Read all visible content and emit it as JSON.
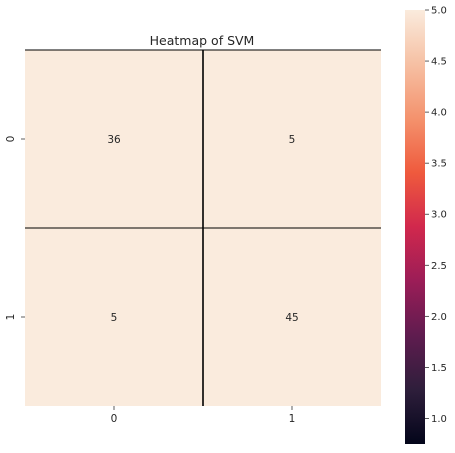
{
  "chart_data": {
    "type": "heatmap",
    "title": "Heatmap of SVM",
    "xlabel": "",
    "ylabel": "",
    "x_categories": [
      "0",
      "1"
    ],
    "y_categories": [
      "0",
      "1"
    ],
    "values": [
      [
        36,
        5
      ],
      [
        5,
        45
      ]
    ],
    "annotations": [
      "36",
      "5",
      "5",
      "45"
    ],
    "colorbar": {
      "min": 0.75,
      "max": 5.0,
      "ticks": [
        "1.0",
        "1.5",
        "2.0",
        "2.5",
        "3.0",
        "3.5",
        "4.0",
        "4.5",
        "5.0"
      ],
      "tick_values": [
        1.0,
        1.5,
        2.0,
        2.5,
        3.0,
        3.5,
        4.0,
        4.5,
        5.0
      ],
      "colormap": "rocket",
      "stops": [
        "#03051a",
        "#2e1e3b",
        "#5f1c4f",
        "#9b1d57",
        "#d1284d",
        "#ef5a3d",
        "#f4926d",
        "#f6c0a3",
        "#faebdd"
      ]
    },
    "cell_color": "#faebdd",
    "grid_color": "#000000"
  }
}
